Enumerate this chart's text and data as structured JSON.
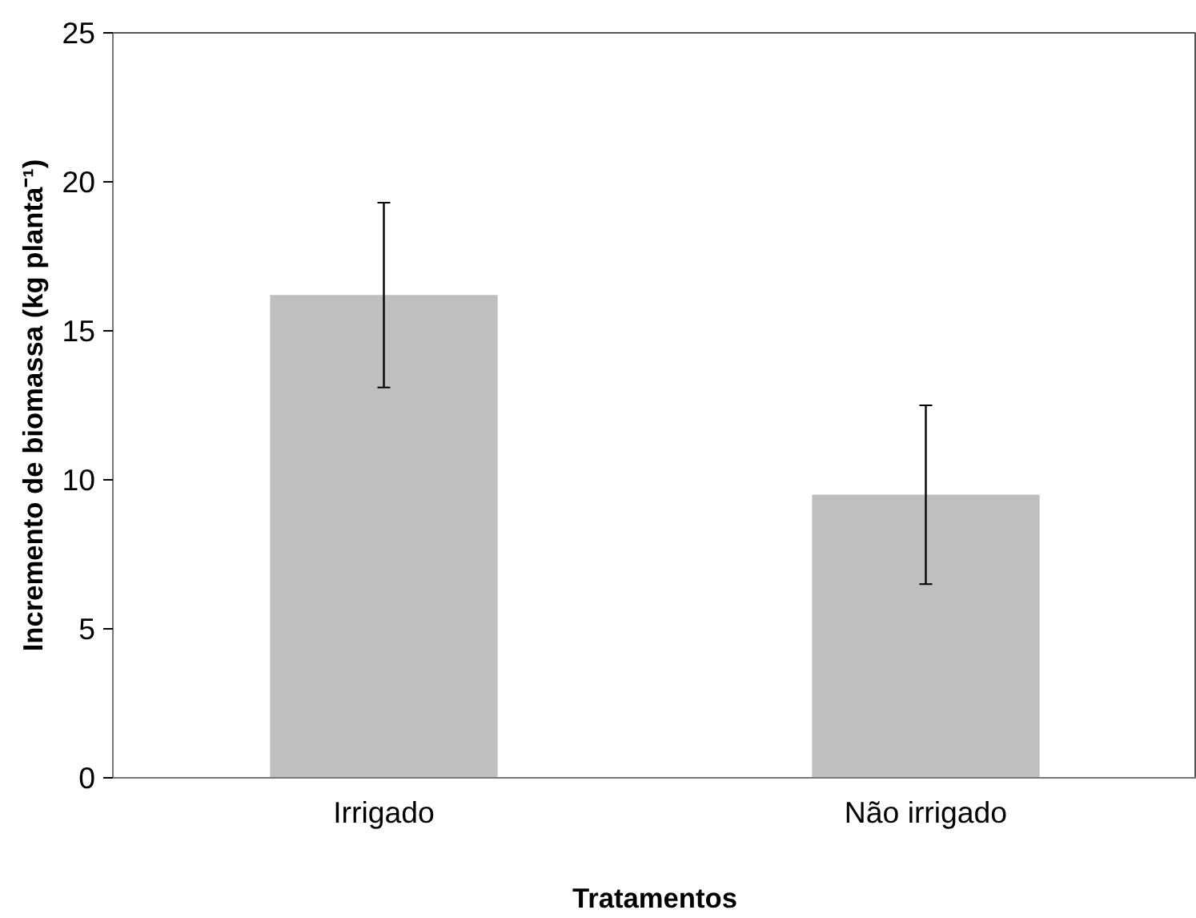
{
  "chart_data": {
    "type": "bar",
    "xlabel": "Tratamentos",
    "ylabel": "Incremento de biomassa (kg planta⁻¹)",
    "categories": [
      "Irrigado",
      "Não irrigado"
    ],
    "values": [
      16.2,
      9.5
    ],
    "errors": [
      3.1,
      3.0
    ],
    "color": "#bfbfbf",
    "ylim": [
      0,
      25
    ],
    "yticks": [
      0,
      5,
      10,
      15,
      20,
      25
    ],
    "grid": false
  }
}
